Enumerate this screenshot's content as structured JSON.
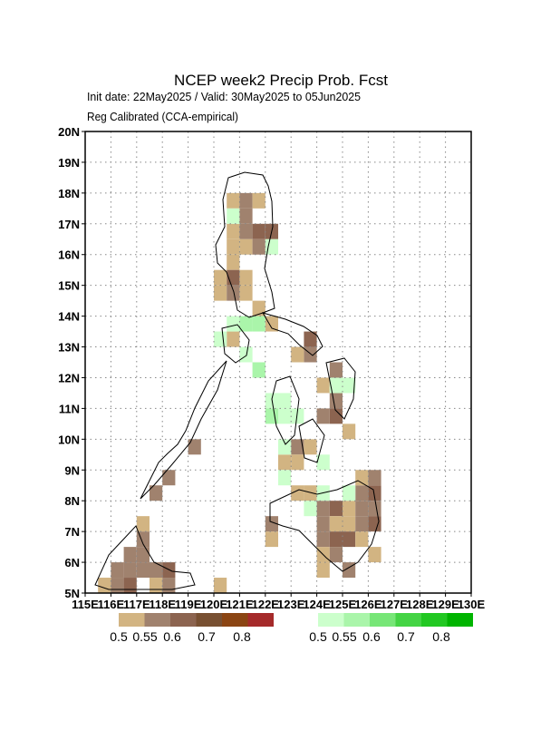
{
  "map": {
    "title": "NCEP week2 Precip Prob. Fcst",
    "subtitle": "Init date: 22May2025 / Valid: 30May2025 to 05Jun2025",
    "method": "Reg Calibrated (CCA-empirical)",
    "xlim": [
      115,
      130
    ],
    "ylim": [
      5,
      20
    ],
    "xticks": [
      {
        "value": 115,
        "label": "115E"
      },
      {
        "value": 116,
        "label": "116E"
      },
      {
        "value": 117,
        "label": "117E"
      },
      {
        "value": 118,
        "label": "118E"
      },
      {
        "value": 119,
        "label": "119E"
      },
      {
        "value": 120,
        "label": "120E"
      },
      {
        "value": 121,
        "label": "121E"
      },
      {
        "value": 122,
        "label": "122E"
      },
      {
        "value": 123,
        "label": "123E"
      },
      {
        "value": 124,
        "label": "124E"
      },
      {
        "value": 125,
        "label": "125E"
      },
      {
        "value": 126,
        "label": "126E"
      },
      {
        "value": 127,
        "label": "127E"
      },
      {
        "value": 128,
        "label": "128E"
      },
      {
        "value": 129,
        "label": "129E"
      },
      {
        "value": 130,
        "label": "130E"
      }
    ],
    "yticks": [
      {
        "value": 5,
        "label": "5N"
      },
      {
        "value": 6,
        "label": "6N"
      },
      {
        "value": 7,
        "label": "7N"
      },
      {
        "value": 8,
        "label": "8N"
      },
      {
        "value": 9,
        "label": "9N"
      },
      {
        "value": 10,
        "label": "10N"
      },
      {
        "value": 11,
        "label": "11N"
      },
      {
        "value": 12,
        "label": "12N"
      },
      {
        "value": 13,
        "label": "13N"
      },
      {
        "value": 14,
        "label": "14N"
      },
      {
        "value": 15,
        "label": "15N"
      },
      {
        "value": 16,
        "label": "16N"
      },
      {
        "value": 17,
        "label": "17N"
      },
      {
        "value": 18,
        "label": "18N"
      },
      {
        "value": 19,
        "label": "19N"
      },
      {
        "value": 20,
        "label": "20N"
      }
    ],
    "grid": true,
    "levels": [
      0.5,
      0.55,
      0.6,
      0.7,
      0.8
    ],
    "below_colors": [
      "#d2b482",
      "#a0826e",
      "#8c6450",
      "#785032",
      "#8b4513",
      "#a52a2a"
    ],
    "above_colors": [
      "#ccffcc",
      "#aaf5aa",
      "#77e677",
      "#44d444",
      "#22c822",
      "#00b400"
    ],
    "below_cells": [
      [
        120.5,
        17.5,
        0.52
      ],
      [
        121,
        17.5,
        0.57
      ],
      [
        121.5,
        17.5,
        0.52
      ],
      [
        121,
        17,
        0.57
      ],
      [
        121.5,
        16.5,
        0.65
      ],
      [
        122,
        16.5,
        0.65
      ],
      [
        120.5,
        16.5,
        0.52
      ],
      [
        121,
        16.5,
        0.57
      ],
      [
        120.5,
        16,
        0.52
      ],
      [
        121,
        16,
        0.52
      ],
      [
        121.5,
        16,
        0.57
      ],
      [
        120.5,
        15.5,
        0.52
      ],
      [
        120.5,
        15,
        0.65
      ],
      [
        120,
        15,
        0.52
      ],
      [
        121,
        15,
        0.52
      ],
      [
        120,
        14.5,
        0.52
      ],
      [
        120.5,
        14.5,
        0.57
      ],
      [
        121,
        14.5,
        0.52
      ],
      [
        121.5,
        14,
        0.52
      ],
      [
        122,
        13.5,
        0.52
      ],
      [
        120.5,
        13,
        0.52
      ],
      [
        123.5,
        13,
        0.65
      ],
      [
        123.5,
        12.5,
        0.57
      ],
      [
        123,
        12.5,
        0.52
      ],
      [
        124.5,
        12,
        0.57
      ],
      [
        124,
        11.5,
        0.52
      ],
      [
        124.5,
        11,
        0.57
      ],
      [
        124.5,
        10.5,
        0.65
      ],
      [
        124,
        10.5,
        0.57
      ],
      [
        125,
        10,
        0.52
      ],
      [
        123,
        9.5,
        0.57
      ],
      [
        123.5,
        9.5,
        0.52
      ],
      [
        122.5,
        9,
        0.52
      ],
      [
        123,
        9,
        0.52
      ],
      [
        119,
        9.5,
        0.57
      ],
      [
        118,
        8.5,
        0.57
      ],
      [
        117.5,
        8,
        0.57
      ],
      [
        123,
        8,
        0.52
      ],
      [
        123.5,
        8,
        0.52
      ],
      [
        122,
        7,
        0.57
      ],
      [
        122,
        6.5,
        0.52
      ],
      [
        124,
        7.5,
        0.57
      ],
      [
        124.5,
        7.5,
        0.65
      ],
      [
        125,
        7.5,
        0.52
      ],
      [
        125.5,
        7.5,
        0.57
      ],
      [
        125.5,
        8,
        0.57
      ],
      [
        126,
        8,
        0.65
      ],
      [
        126,
        7.5,
        0.57
      ],
      [
        124,
        7,
        0.57
      ],
      [
        124.5,
        7,
        0.52
      ],
      [
        125,
        7,
        0.52
      ],
      [
        125.5,
        7,
        0.57
      ],
      [
        126,
        7,
        0.65
      ],
      [
        124,
        6.5,
        0.57
      ],
      [
        124.5,
        6.5,
        0.65
      ],
      [
        125,
        6.5,
        0.65
      ],
      [
        125.5,
        6.5,
        0.52
      ],
      [
        126,
        6,
        0.52
      ],
      [
        124,
        6,
        0.52
      ],
      [
        124.5,
        6,
        0.57
      ],
      [
        125,
        5.5,
        0.57
      ],
      [
        124,
        5.5,
        0.52
      ],
      [
        125.5,
        8.5,
        0.52
      ],
      [
        126,
        8.5,
        0.57
      ],
      [
        116.5,
        6,
        0.57
      ],
      [
        117,
        6.5,
        0.57
      ],
      [
        117,
        6,
        0.57
      ],
      [
        116,
        5.5,
        0.57
      ],
      [
        116.5,
        5.5,
        0.57
      ],
      [
        117,
        5.5,
        0.57
      ],
      [
        117.5,
        5.5,
        0.57
      ],
      [
        118,
        5.5,
        0.65
      ],
      [
        117,
        7,
        0.52
      ],
      [
        116,
        5,
        0.57
      ],
      [
        115.5,
        5,
        0.52
      ],
      [
        117.5,
        5,
        0.52
      ],
      [
        118,
        5,
        0.57
      ],
      [
        116.5,
        5,
        0.65
      ],
      [
        120,
        5,
        0.52
      ]
    ],
    "above_cells": [
      [
        120.5,
        17,
        0.52
      ],
      [
        122,
        16,
        0.52
      ],
      [
        120.5,
        13.5,
        0.52
      ],
      [
        121,
        13.5,
        0.57
      ],
      [
        121.5,
        13.5,
        0.57
      ],
      [
        120,
        13,
        0.52
      ],
      [
        121.5,
        12,
        0.57
      ],
      [
        121,
        12.5,
        0.52
      ],
      [
        122,
        11,
        0.52
      ],
      [
        122,
        10.5,
        0.57
      ],
      [
        122.5,
        11,
        0.52
      ],
      [
        122.5,
        10.5,
        0.52
      ],
      [
        123,
        10.5,
        0.52
      ],
      [
        122.5,
        9.5,
        0.52
      ],
      [
        122.5,
        8.5,
        0.52
      ],
      [
        124,
        9,
        0.52
      ],
      [
        124.5,
        11.5,
        0.52
      ],
      [
        125,
        11.5,
        0.52
      ],
      [
        123.5,
        7.5,
        0.52
      ],
      [
        125,
        8,
        0.52
      ],
      [
        124,
        8,
        0.52
      ]
    ]
  }
}
